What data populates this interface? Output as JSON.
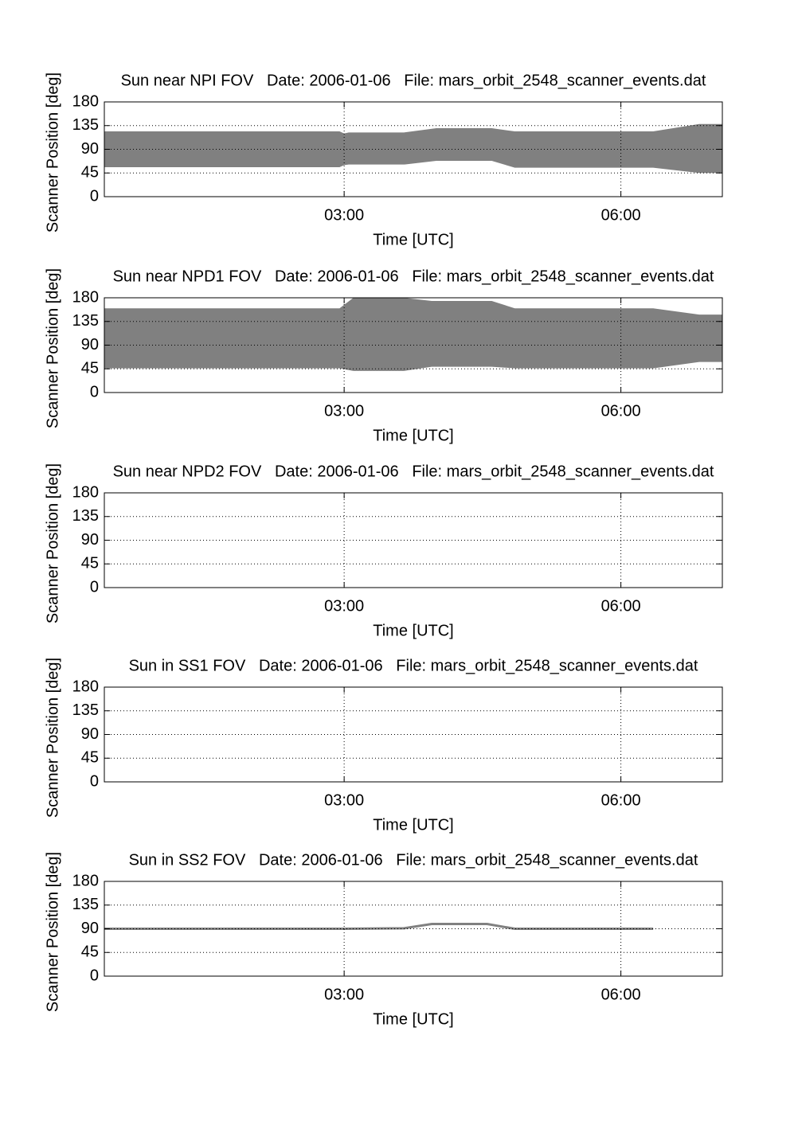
{
  "chart_data": [
    {
      "type": "area",
      "title": "Sun near NPI FOV   Date: 2006-01-06   File: mars_orbit_2548_scanner_events.dat",
      "xlabel": "Time [UTC]",
      "ylabel": "Scanner Position [deg]",
      "color": "#808080",
      "grid": true,
      "x": [
        0.4,
        2.95,
        3.0,
        3.05,
        3.65,
        4.0,
        4.6,
        4.85,
        6.35,
        6.85,
        7.1
      ],
      "high": [
        124,
        124,
        120,
        122,
        122,
        130,
        130,
        124,
        124,
        138,
        138
      ],
      "low": [
        56,
        56,
        60,
        61,
        61,
        68,
        68,
        55,
        55,
        45,
        45
      ],
      "xlim": [
        0.4,
        7.1
      ],
      "xticks": [
        {
          "value": 3,
          "label": "03:00"
        },
        {
          "value": 6,
          "label": "06:00"
        }
      ],
      "ylim": [
        0,
        180
      ],
      "yticks": [
        0,
        45,
        90,
        135,
        180
      ]
    },
    {
      "type": "area",
      "title": "Sun near NPD1 FOV   Date: 2006-01-06   File: mars_orbit_2548_scanner_events.dat",
      "xlabel": "Time [UTC]",
      "ylabel": "Scanner Position [deg]",
      "color": "#808080",
      "grid": true,
      "x": [
        0.4,
        2.95,
        3.1,
        3.65,
        3.95,
        4.6,
        4.85,
        6.35,
        6.85,
        7.1
      ],
      "high": [
        160,
        160,
        180,
        180,
        174,
        174,
        160,
        160,
        148,
        148
      ],
      "low": [
        46,
        46,
        41,
        41,
        49,
        49,
        46,
        46,
        58,
        58
      ],
      "xlim": [
        0.4,
        7.1
      ],
      "xticks": [
        {
          "value": 3,
          "label": "03:00"
        },
        {
          "value": 6,
          "label": "06:00"
        }
      ],
      "ylim": [
        0,
        180
      ],
      "yticks": [
        0,
        45,
        90,
        135,
        180
      ]
    },
    {
      "type": "area",
      "title": "Sun near NPD2 FOV   Date: 2006-01-06   File: mars_orbit_2548_scanner_events.dat",
      "xlabel": "Time [UTC]",
      "ylabel": "Scanner Position [deg]",
      "color": "#808080",
      "grid": true,
      "xlim": [
        0.4,
        7.1
      ],
      "xticks": [
        {
          "value": 3,
          "label": "03:00"
        },
        {
          "value": 6,
          "label": "06:00"
        }
      ],
      "ylim": [
        0,
        180
      ],
      "yticks": [
        0,
        45,
        90,
        135,
        180
      ]
    },
    {
      "type": "area",
      "title": "Sun in SS1 FOV   Date: 2006-01-06   File: mars_orbit_2548_scanner_events.dat",
      "xlabel": "Time [UTC]",
      "ylabel": "Scanner Position [deg]",
      "color": "#808080",
      "grid": true,
      "xlim": [
        0.4,
        7.1
      ],
      "xticks": [
        {
          "value": 3,
          "label": "03:00"
        },
        {
          "value": 6,
          "label": "06:00"
        }
      ],
      "ylim": [
        0,
        180
      ],
      "yticks": [
        0,
        45,
        90,
        135,
        180
      ]
    },
    {
      "type": "line",
      "title": "Sun in SS2 FOV   Date: 2006-01-06   File: mars_orbit_2548_scanner_events.dat",
      "xlabel": "Time [UTC]",
      "ylabel": "Scanner Position [deg]",
      "color": "#808080",
      "grid": true,
      "x": [
        0.4,
        3.0,
        3.65,
        3.95,
        4.55,
        4.85,
        6.35
      ],
      "values": [
        90,
        90,
        91,
        99,
        99,
        90,
        90
      ],
      "xlim": [
        0.4,
        7.1
      ],
      "xticks": [
        {
          "value": 3,
          "label": "03:00"
        },
        {
          "value": 6,
          "label": "06:00"
        }
      ],
      "ylim": [
        0,
        180
      ],
      "yticks": [
        0,
        45,
        90,
        135,
        180
      ]
    }
  ]
}
